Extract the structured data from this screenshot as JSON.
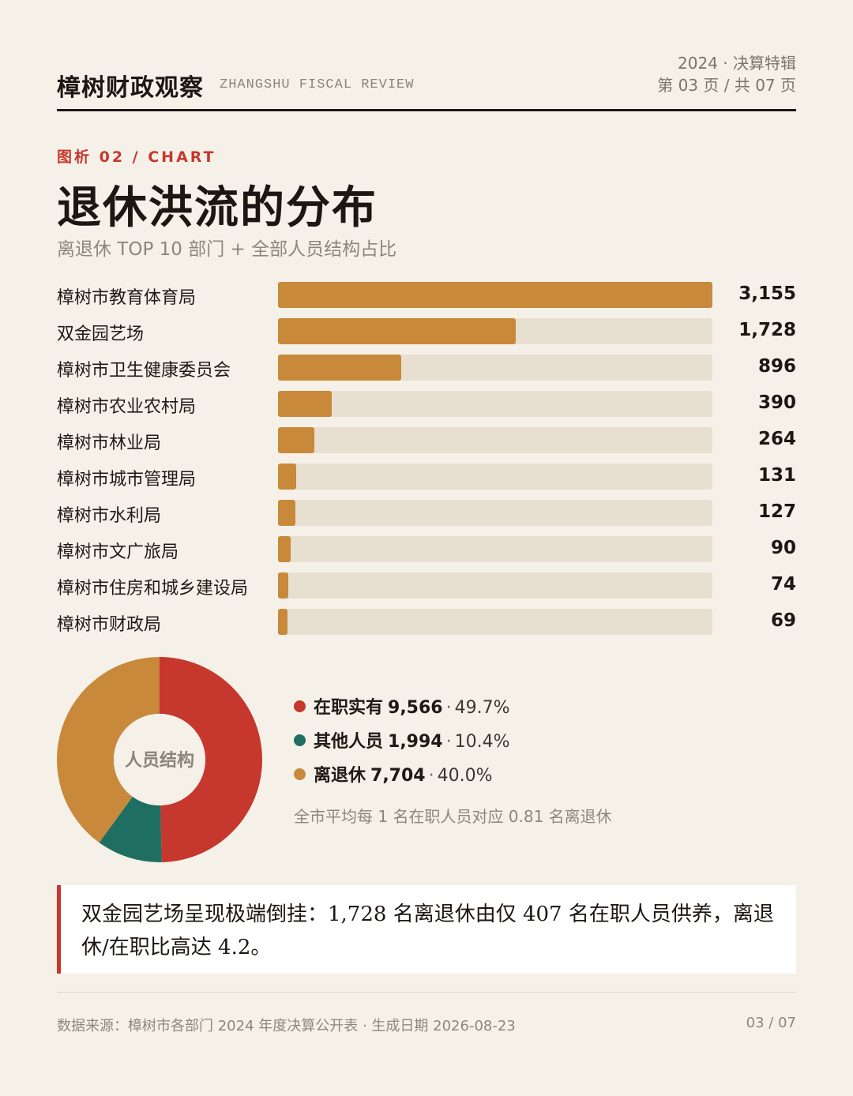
{
  "header": {
    "brand": "樟树财政观察",
    "brand_en": "ZHANGSHU FISCAL REVIEW",
    "issue": "2024 · 决算特辑",
    "page_info": "第 03 页 / 共 07 页"
  },
  "figure": {
    "kicker": "图析 02 / CHART",
    "title": "退休洪流的分布",
    "subtitle": "离退休 TOP 10 部门 + 全部人员结构占比"
  },
  "chart_data": [
    {
      "type": "bar",
      "orientation": "horizontal",
      "categories": [
        "樟树市教育体育局",
        "双金园艺场",
        "樟树市卫生健康委员会",
        "樟树市农业农村局",
        "樟树市林业局",
        "樟树市城市管理局",
        "樟树市水利局",
        "樟树市文广旅局",
        "樟树市住房和城乡建设局",
        "樟树市财政局"
      ],
      "values": [
        3155,
        1728,
        896,
        390,
        264,
        131,
        127,
        90,
        74,
        69
      ],
      "value_labels": [
        "3,155",
        "1,728",
        "896",
        "390",
        "264",
        "131",
        "127",
        "90",
        "74",
        "69"
      ],
      "xlim": [
        0,
        3155
      ],
      "colors": {
        "fill": "#c8893a",
        "track": "#e7dfd0"
      }
    },
    {
      "type": "pie",
      "center_label": "人员结构",
      "slices": [
        {
          "name": "在职实有",
          "value": 9566,
          "value_label": "9,566",
          "percent": 49.7,
          "percent_label": "49.7%",
          "color": "#c6372d"
        },
        {
          "name": "其他人员",
          "value": 1994,
          "value_label": "1,994",
          "percent": 10.4,
          "percent_label": "10.4%",
          "color": "#1f6e62"
        },
        {
          "name": "离退休",
          "value": 7704,
          "value_label": "7,704",
          "percent": 40.0,
          "percent_label": "40.0%",
          "color": "#c8893a"
        }
      ],
      "legend_position": "right"
    }
  ],
  "ratio_note": "全市平均每 1 名在职人员对应 0.81 名离退休",
  "callout": "双金园艺场呈现极端倒挂：1,728 名离退休由仅 407 名在职人员供养，离退休/在职比高达 4.2。",
  "footer": {
    "source": "数据来源：樟树市各部门 2024 年度决算公开表 · 生成日期 2026-08-23",
    "page": "03 / 07"
  }
}
